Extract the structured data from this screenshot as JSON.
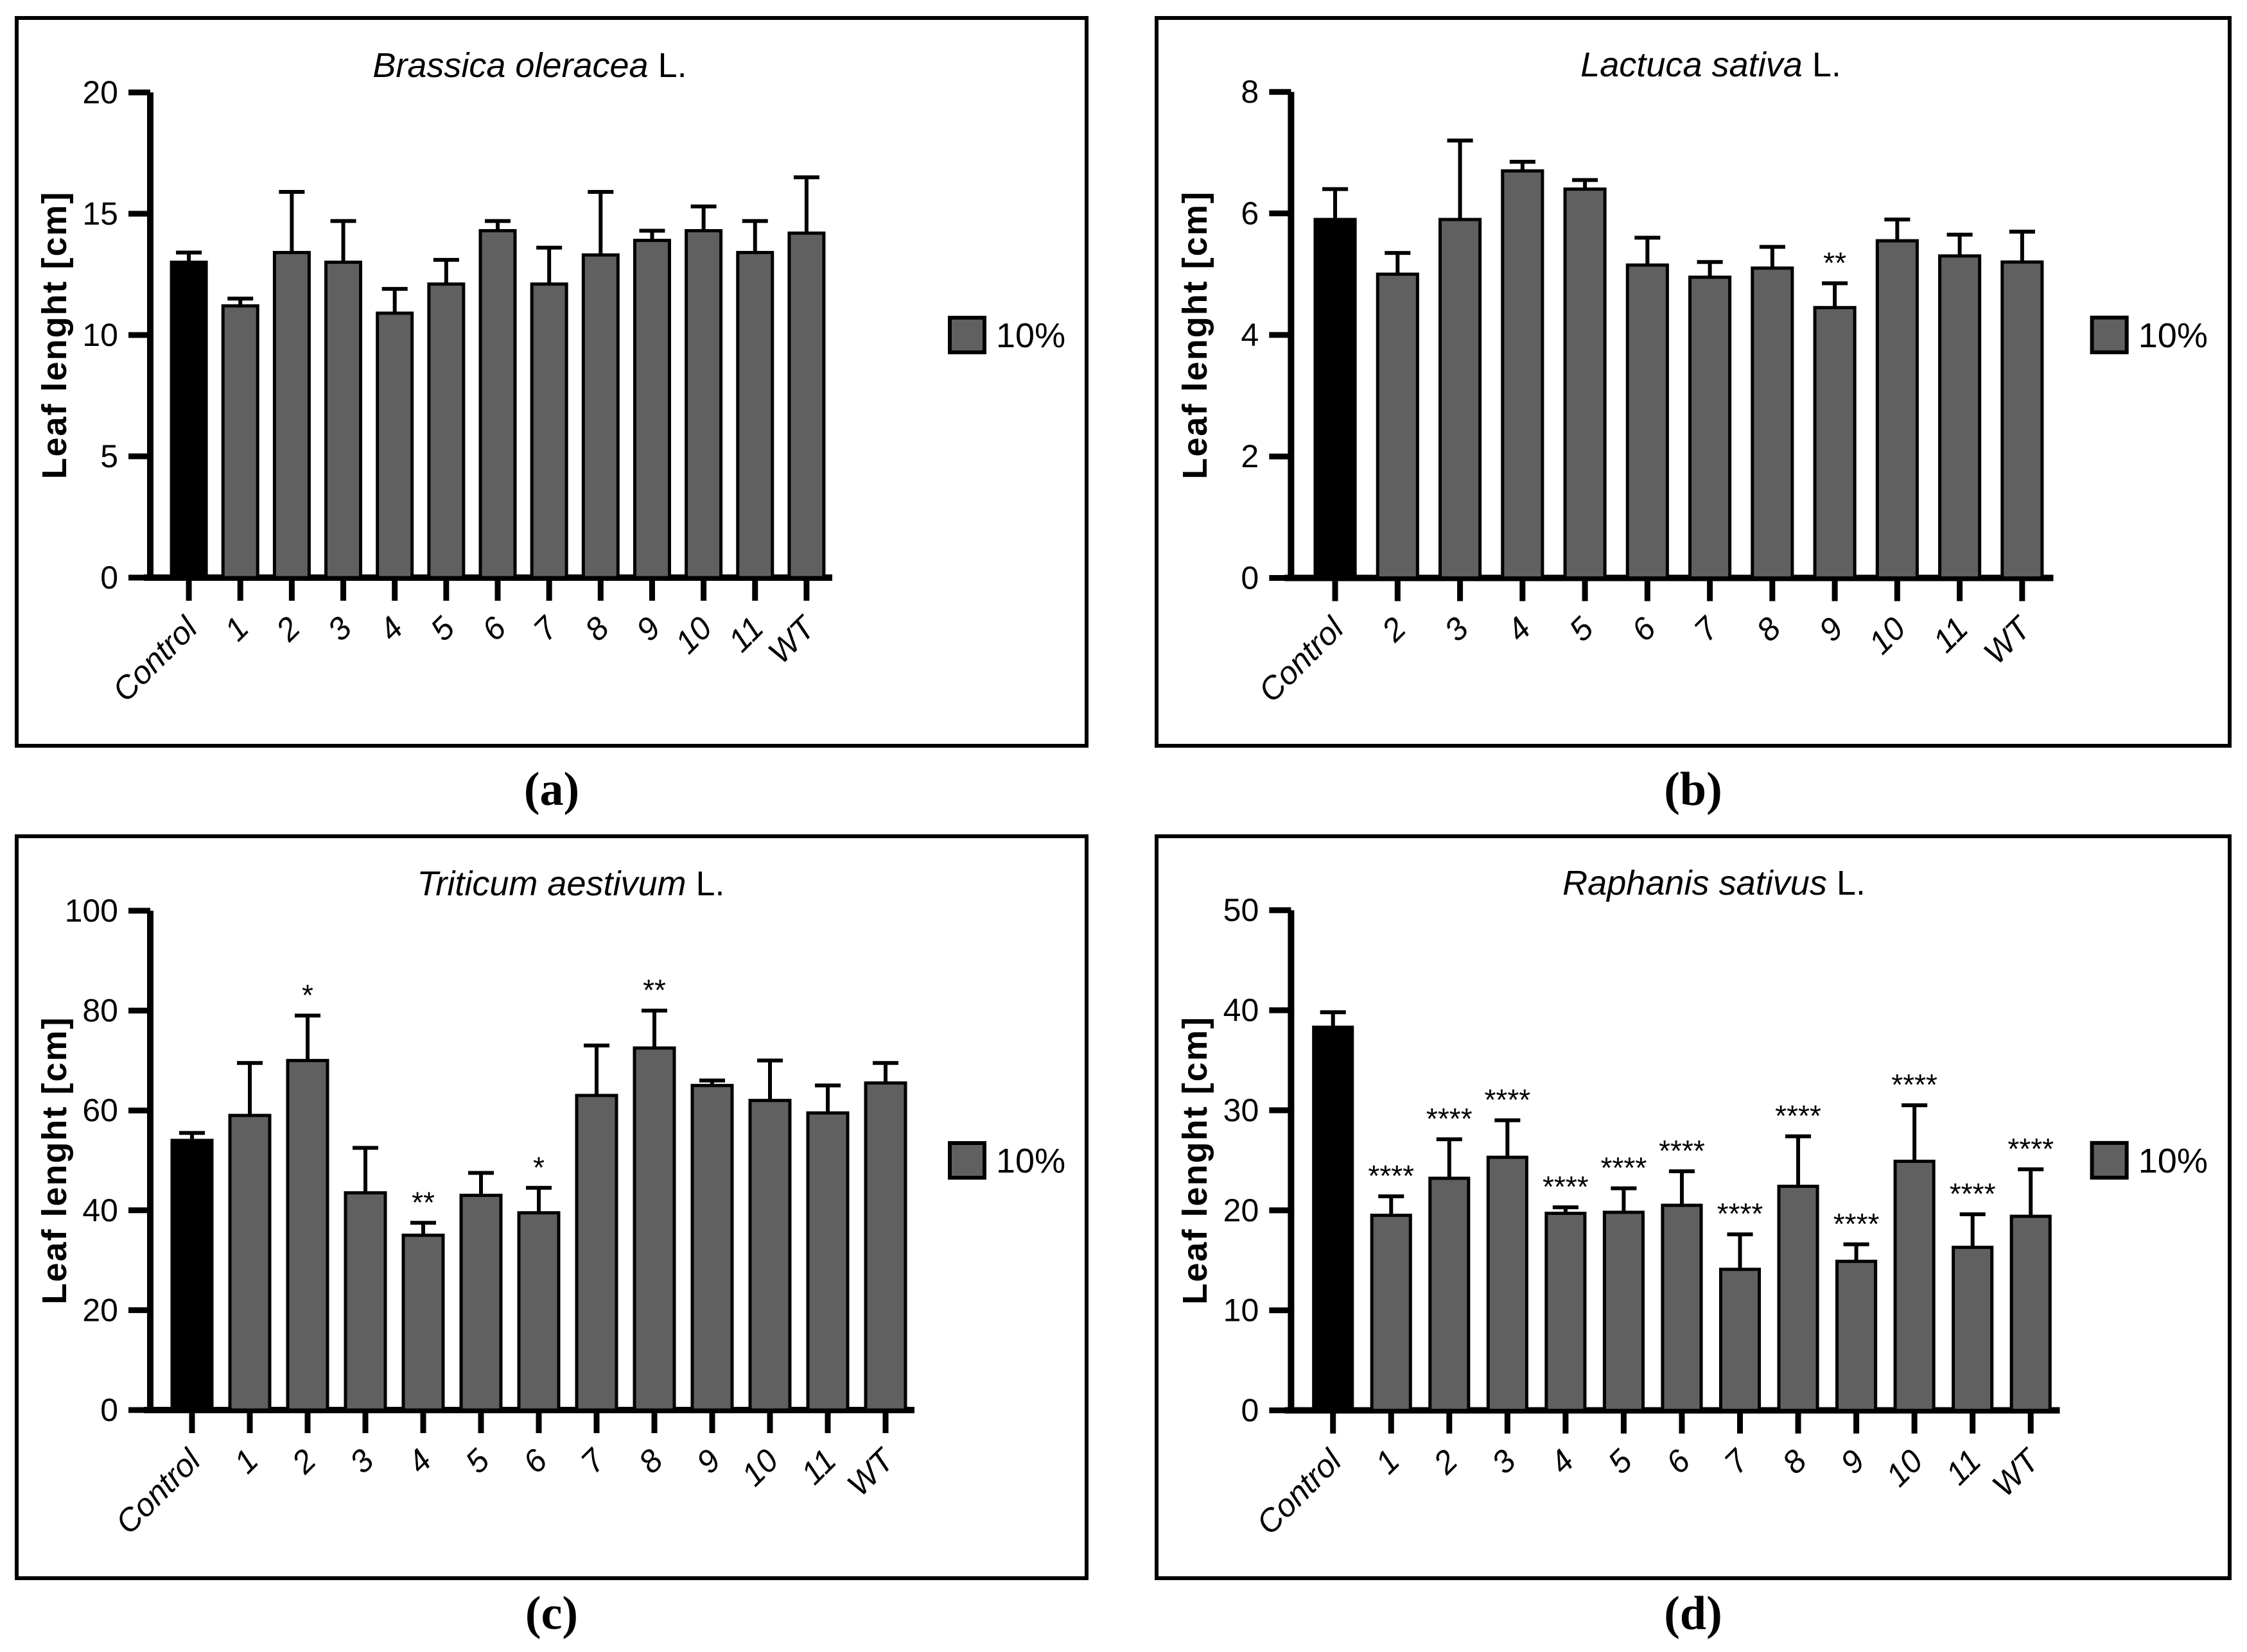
{
  "colors": {
    "bar_fill": "#606060",
    "control_fill": "#000000",
    "axis": "#000000",
    "background": "#ffffff",
    "text": "#000000"
  },
  "chart_data": [
    {
      "type": "bar",
      "panel_label": "(a)",
      "title": "Brassica oleracea L.",
      "title_italic": "Brassica oleracea",
      "title_tail": " L.",
      "xlabel": "",
      "ylabel": "Leaf lenght [cm]",
      "ylim": [
        0,
        20
      ],
      "yticks": [
        0,
        5,
        10,
        15,
        20
      ],
      "categories": [
        "Control",
        "1",
        "2",
        "3",
        "4",
        "5",
        "6",
        "7",
        "8",
        "9",
        "10",
        "11",
        "WT"
      ],
      "values": [
        13.0,
        11.2,
        13.4,
        13.0,
        10.9,
        12.1,
        14.3,
        12.1,
        13.3,
        13.9,
        14.3,
        13.4,
        14.2
      ],
      "errors_upper": [
        0.4,
        0.3,
        2.5,
        1.7,
        1.0,
        1.0,
        0.4,
        1.5,
        2.6,
        0.4,
        1.0,
        1.3,
        2.3
      ],
      "significance": [
        "",
        "",
        "",
        "",
        "",
        "",
        "",
        "",
        "",
        "",
        "",
        "",
        ""
      ],
      "control_index": 0,
      "legend_label": "10%",
      "legend_position": "right",
      "grid": false
    },
    {
      "type": "bar",
      "panel_label": "(b)",
      "title": "Lactuca sativa L.",
      "title_italic": "Lactuca sativa",
      "title_tail": " L.",
      "xlabel": "",
      "ylabel": "Leaf lenght [cm]",
      "ylim": [
        0,
        8
      ],
      "yticks": [
        0,
        2,
        4,
        6,
        8
      ],
      "categories": [
        "Control",
        "2",
        "3",
        "4",
        "5",
        "6",
        "7",
        "8",
        "9",
        "10",
        "11",
        "WT"
      ],
      "values": [
        5.9,
        5.0,
        5.9,
        6.7,
        6.4,
        5.15,
        4.95,
        5.1,
        4.45,
        5.55,
        5.3,
        5.2
      ],
      "errors_upper": [
        0.5,
        0.35,
        1.3,
        0.15,
        0.15,
        0.45,
        0.25,
        0.35,
        0.4,
        0.35,
        0.35,
        0.5
      ],
      "significance": [
        "",
        "",
        "",
        "",
        "",
        "",
        "",
        "",
        "**",
        "",
        "",
        ""
      ],
      "control_index": 0,
      "legend_label": "10%",
      "legend_position": "right",
      "grid": false
    },
    {
      "type": "bar",
      "panel_label": "(c)",
      "title": "Triticum aestivum L.",
      "title_italic": "Triticum aestivum",
      "title_tail": " L.",
      "xlabel": "",
      "ylabel": "Leaf lenght [cm]",
      "ylim": [
        0,
        100
      ],
      "yticks": [
        0,
        20,
        40,
        60,
        80,
        100
      ],
      "categories": [
        "Control",
        "1",
        "2",
        "3",
        "4",
        "5",
        "6",
        "7",
        "8",
        "9",
        "10",
        "11",
        "WT"
      ],
      "values": [
        54,
        59,
        70,
        43.5,
        35,
        43,
        39.5,
        63,
        72.5,
        65,
        62,
        59.5,
        65.5
      ],
      "errors_upper": [
        1.5,
        10.5,
        9,
        9,
        2.5,
        4.5,
        5,
        10,
        7.5,
        1,
        8,
        5.5,
        4
      ],
      "significance": [
        "",
        "",
        "*",
        "",
        "**",
        "",
        "*",
        "",
        "**",
        "",
        "",
        "",
        ""
      ],
      "control_index": 0,
      "legend_label": "10%",
      "legend_position": "right",
      "grid": false
    },
    {
      "type": "bar",
      "panel_label": "(d)",
      "title": "Raphanis sativus L.",
      "title_italic": "Raphanis sativus",
      "title_tail": " L.",
      "xlabel": "",
      "ylabel": "Leaf lenght [cm]",
      "ylim": [
        0,
        50
      ],
      "yticks": [
        0,
        10,
        20,
        30,
        40,
        50
      ],
      "categories": [
        "Control",
        "1",
        "2",
        "3",
        "4",
        "5",
        "6",
        "7",
        "8",
        "9",
        "10",
        "11",
        "WT"
      ],
      "values": [
        38.3,
        19.5,
        23.2,
        25.3,
        19.7,
        19.8,
        20.5,
        14.1,
        22.4,
        14.9,
        24.9,
        16.3,
        19.4
      ],
      "errors_upper": [
        1.5,
        1.9,
        3.9,
        3.7,
        0.6,
        2.4,
        3.4,
        3.5,
        5.0,
        1.7,
        5.6,
        3.3,
        4.7
      ],
      "significance": [
        "",
        "****",
        "****",
        "****",
        "****",
        "****",
        "****",
        "****",
        "****",
        "****",
        "****",
        "****",
        "****"
      ],
      "control_index": 0,
      "legend_label": "10%",
      "legend_position": "right",
      "grid": false
    }
  ]
}
